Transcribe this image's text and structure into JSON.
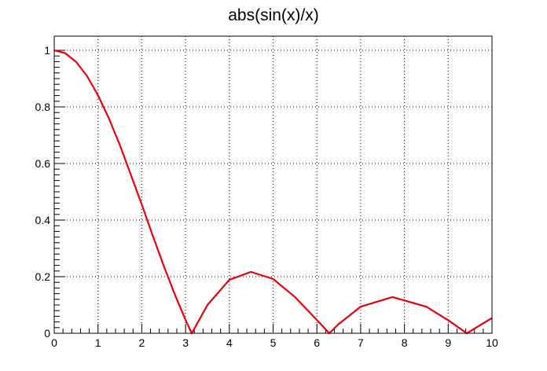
{
  "chart_data": {
    "type": "line",
    "title": "abs(sin(x)/x)",
    "xlabel": "",
    "ylabel": "",
    "xlim": [
      0,
      10
    ],
    "ylim": [
      0,
      1.05
    ],
    "grid": true,
    "x_ticks": [
      "0",
      "1",
      "2",
      "3",
      "4",
      "5",
      "6",
      "7",
      "8",
      "9",
      "10"
    ],
    "y_ticks": [
      "0",
      "0.2",
      "0.4",
      "0.6",
      "0.8",
      "1"
    ],
    "series": [
      {
        "color": "#e8000b",
        "x": [
          0,
          0.25,
          0.5,
          0.75,
          1,
          1.25,
          1.5,
          1.75,
          2,
          2.25,
          2.5,
          2.75,
          3,
          3.1416,
          3.5,
          4,
          4.4934,
          5,
          5.5,
          6,
          6.2832,
          6.5,
          7,
          7.7253,
          8.5,
          9,
          9.4248,
          10
        ],
        "y": [
          1.0,
          0.99,
          0.959,
          0.909,
          0.841,
          0.759,
          0.665,
          0.56,
          0.455,
          0.345,
          0.239,
          0.139,
          0.047,
          0.0,
          0.1,
          0.189,
          0.217,
          0.192,
          0.128,
          0.047,
          0.0,
          0.033,
          0.094,
          0.128,
          0.094,
          0.046,
          0.0,
          0.054
        ]
      }
    ]
  }
}
